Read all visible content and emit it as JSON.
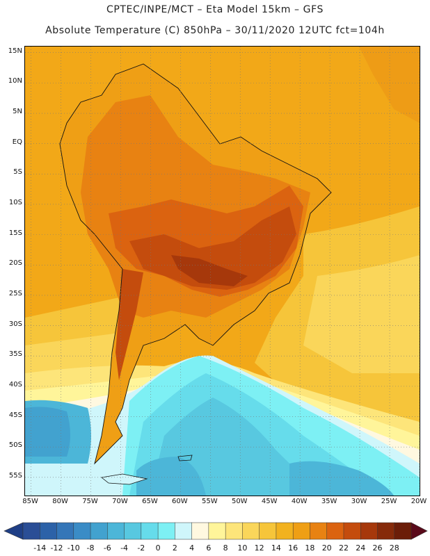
{
  "header": {
    "line1": "CPTEC/INPE/MCT –  Eta Model 15km – GFS",
    "line2": "Absolute Temperature (C) 850hPa – 30/11/2020 12UTC fct=104h"
  },
  "map": {
    "lat_range": [
      -58,
      16
    ],
    "lon_range": [
      -86,
      -20
    ],
    "lat_ticks": [
      "15N",
      "10N",
      "5N",
      "EQ",
      "5S",
      "10S",
      "15S",
      "20S",
      "25S",
      "30S",
      "35S",
      "40S",
      "45S",
      "50S",
      "55S"
    ],
    "lat_values": [
      15,
      10,
      5,
      0,
      -5,
      -10,
      -15,
      -20,
      -25,
      -30,
      -35,
      -40,
      -45,
      -50,
      -55
    ],
    "lon_ticks": [
      "85W",
      "80W",
      "75W",
      "70W",
      "65W",
      "60W",
      "55W",
      "50W",
      "45W",
      "40W",
      "35W",
      "30W",
      "25W",
      "20W"
    ],
    "lon_values": [
      -85,
      -80,
      -75,
      -70,
      -65,
      -60,
      -55,
      -50,
      -45,
      -40,
      -35,
      -30,
      -25,
      -20
    ]
  },
  "colorbar": {
    "labels": [
      "-14",
      "-12",
      "-10",
      "-8",
      "-6",
      "-4",
      "-2",
      "0",
      "2",
      "4",
      "6",
      "8",
      "10",
      "12",
      "14",
      "16",
      "18",
      "20",
      "22",
      "24",
      "26",
      "28"
    ],
    "colors": [
      "#2a4e96",
      "#2c62a8",
      "#3476b8",
      "#3a8cc6",
      "#42a2cf",
      "#4cb6d8",
      "#58c8e0",
      "#66dceb",
      "#7df0f4",
      "#cff6fb",
      "#fff8e0",
      "#fff59a",
      "#fde57a",
      "#fad65a",
      "#f6c53a",
      "#f2b21f",
      "#ef9f15",
      "#e88212",
      "#db6310",
      "#c44c0d",
      "#a6380b",
      "#862a0a",
      "#6b1d08"
    ],
    "under_color": "#1f3f86",
    "over_color": "#5a0a1a"
  }
}
